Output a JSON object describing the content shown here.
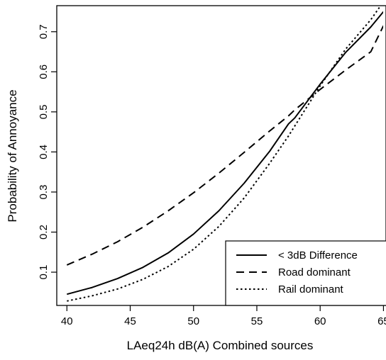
{
  "chart_data": {
    "type": "line",
    "title": "",
    "xlabel": "LAeq24h dB(A) Combined sources",
    "ylabel": "Probability of Annoyance",
    "xlim": [
      39.2,
      65.2
    ],
    "ylim": [
      0.017,
      0.765
    ],
    "xticks": [
      40,
      45,
      50,
      55,
      60,
      65
    ],
    "yticks": [
      0.1,
      0.2,
      0.3,
      0.4,
      0.5,
      0.6,
      0.7
    ],
    "grid": false,
    "legend_position": "bottom-right",
    "series": [
      {
        "name": "< 3dB Difference",
        "style": "solid",
        "x": [
          40,
          42,
          44,
          46,
          48,
          50,
          52,
          54,
          56,
          57.5,
          58,
          60,
          62,
          64,
          65
        ],
        "y": [
          0.045,
          0.062,
          0.084,
          0.112,
          0.148,
          0.195,
          0.253,
          0.322,
          0.401,
          0.47,
          0.485,
          0.569,
          0.648,
          0.712,
          0.75
        ]
      },
      {
        "name": "Road dominant",
        "style": "dashed",
        "x": [
          40,
          42,
          44,
          46,
          48,
          50,
          52,
          54,
          56,
          57.5,
          58,
          60,
          62,
          64,
          65
        ],
        "y": [
          0.118,
          0.145,
          0.176,
          0.212,
          0.253,
          0.298,
          0.347,
          0.399,
          0.452,
          0.49,
          0.505,
          0.556,
          0.604,
          0.65,
          0.715
        ]
      },
      {
        "name": "Rail dominant",
        "style": "dotted",
        "x": [
          40,
          42,
          44,
          46,
          48,
          50,
          52,
          54,
          56,
          57.5,
          58,
          60,
          62,
          64,
          65
        ],
        "y": [
          0.028,
          0.041,
          0.058,
          0.082,
          0.114,
          0.157,
          0.214,
          0.285,
          0.371,
          0.44,
          0.465,
          0.565,
          0.656,
          0.73,
          0.775
        ]
      }
    ]
  }
}
